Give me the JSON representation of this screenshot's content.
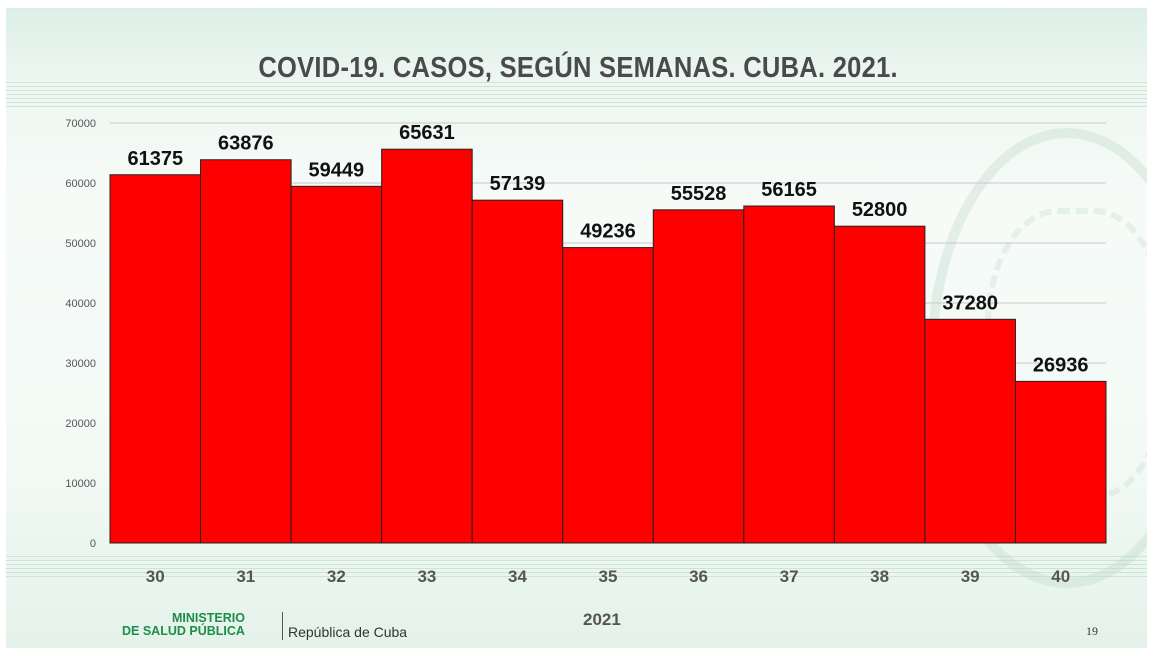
{
  "slide": {
    "title": "COVID-19. CASOS, SEGÚN SEMANAS. CUBA. 2021.",
    "footer_ministry_line1": "MINISTERIO",
    "footer_ministry_line2": "DE SALUD PÚBLICA",
    "footer_republic": "República de Cuba",
    "page_number": "19"
  },
  "chart_data": {
    "type": "bar",
    "title": "COVID-19. CASOS, SEGÚN SEMANAS. CUBA. 2021.",
    "xlabel": "2021",
    "ylabel": "",
    "categories": [
      "30",
      "31",
      "32",
      "33",
      "34",
      "35",
      "36",
      "37",
      "38",
      "39",
      "40"
    ],
    "values": [
      61375,
      63876,
      59449,
      65631,
      57139,
      49236,
      55528,
      56165,
      52800,
      37280,
      26936
    ],
    "ylim": [
      0,
      70000
    ],
    "yticks": [
      0,
      10000,
      20000,
      30000,
      40000,
      50000,
      60000,
      70000
    ],
    "bar_color": "#ff0000",
    "grid": true,
    "legend": "none"
  }
}
